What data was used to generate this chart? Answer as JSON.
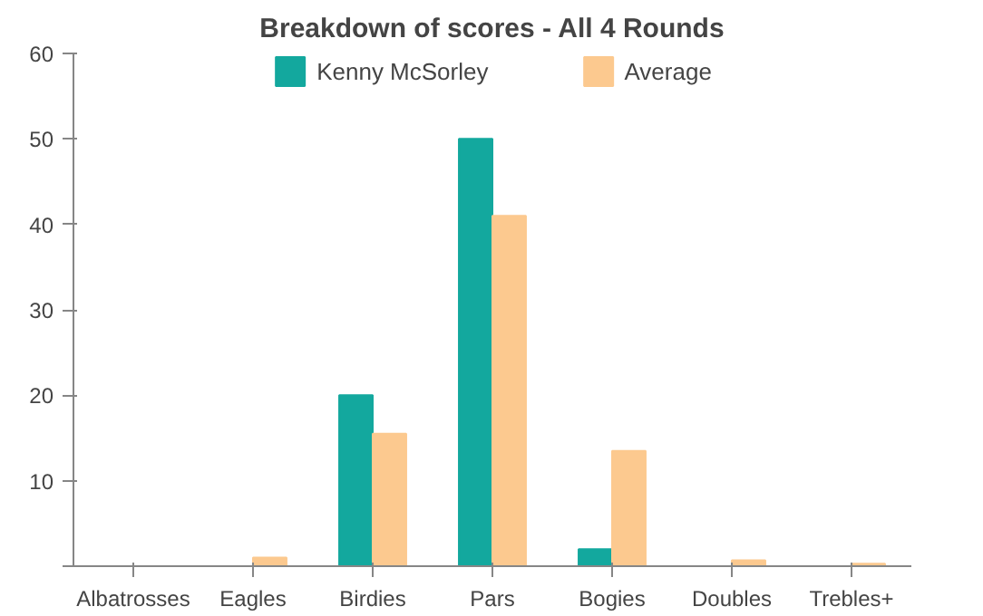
{
  "chart_data": {
    "type": "bar",
    "title": "Breakdown of scores - All 4 Rounds",
    "categories": [
      "Albatrosses",
      "Eagles",
      "Birdies",
      "Pars",
      "Bogies",
      "Doubles",
      "Trebles+"
    ],
    "series": [
      {
        "name": "Kenny McSorley",
        "color": "#13a89e",
        "values": [
          0,
          0,
          20,
          50,
          2,
          0,
          0
        ]
      },
      {
        "name": "Average",
        "color": "#fcc98f",
        "values": [
          0,
          1,
          15.5,
          41,
          13.5,
          0.7,
          0.3
        ]
      }
    ],
    "ylim": [
      0,
      60
    ],
    "yticks": [
      {
        "value": 0,
        "label": null
      },
      10,
      20,
      30,
      40,
      50,
      60
    ],
    "grid": false,
    "legend": "top"
  }
}
